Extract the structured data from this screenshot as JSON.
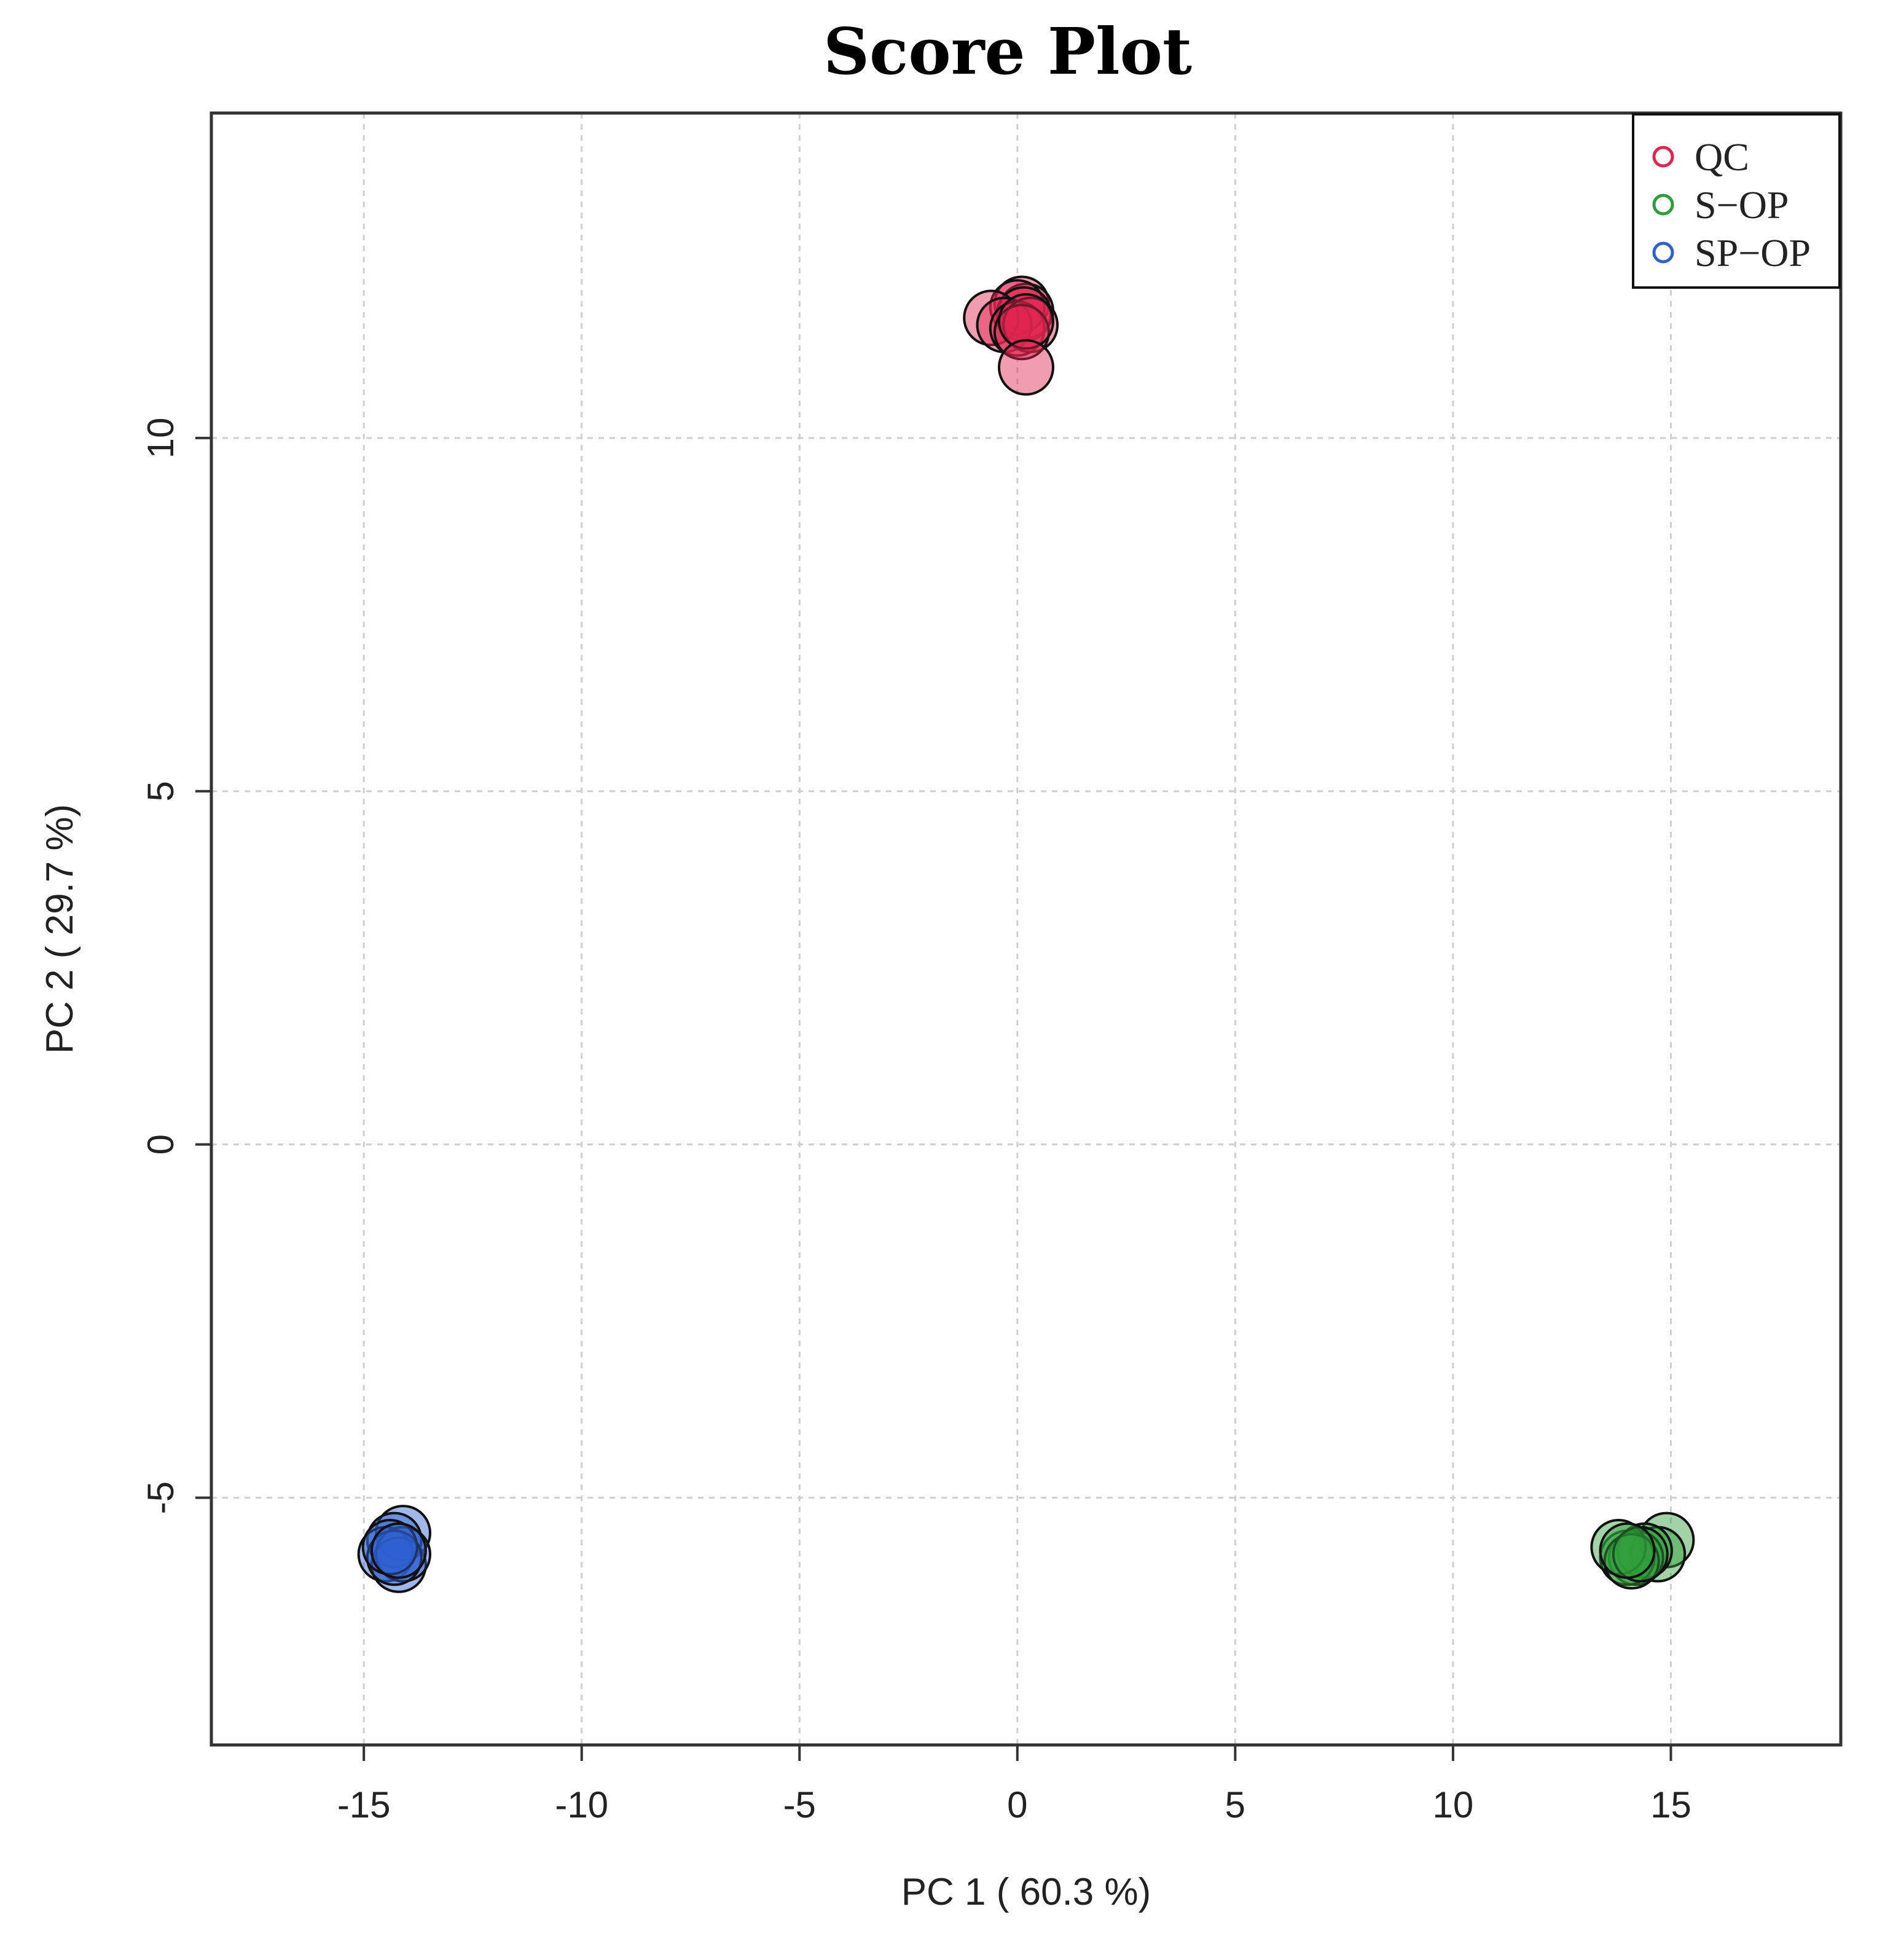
{
  "chart_data": {
    "type": "scatter",
    "title": "Score Plot",
    "xlabel": "PC 1 ( 60.3 %)",
    "ylabel": "PC 2 ( 29.7 %)",
    "xlim": [
      -18.5,
      18.9
    ],
    "ylim": [
      -8.5,
      14.6
    ],
    "xticks": [
      -15,
      -10,
      -5,
      0,
      5,
      10,
      15
    ],
    "yticks": [
      -5,
      0,
      5,
      10
    ],
    "grid": true,
    "legend_position": "top-right",
    "series": [
      {
        "name": "QC",
        "color": "#e0254f",
        "points": [
          {
            "x": 0.1,
            "y": 11.9
          },
          {
            "x": 0.2,
            "y": 11.8
          },
          {
            "x": 0.0,
            "y": 11.85
          },
          {
            "x": 0.15,
            "y": 11.75
          },
          {
            "x": -0.6,
            "y": 11.7
          },
          {
            "x": -0.3,
            "y": 11.6
          },
          {
            "x": 0.0,
            "y": 11.55
          },
          {
            "x": 0.3,
            "y": 11.6
          },
          {
            "x": 0.1,
            "y": 11.5
          },
          {
            "x": 0.2,
            "y": 11.65
          },
          {
            "x": 0.2,
            "y": 11.0
          }
        ]
      },
      {
        "name": "S−OP",
        "color": "#2e9e3a",
        "points": [
          {
            "x": 14.9,
            "y": -5.6
          },
          {
            "x": 14.7,
            "y": -5.8
          },
          {
            "x": 14.4,
            "y": -5.75
          },
          {
            "x": 14.2,
            "y": -5.85
          },
          {
            "x": 14.0,
            "y": -5.85
          },
          {
            "x": 13.8,
            "y": -5.7
          },
          {
            "x": 14.1,
            "y": -5.9
          },
          {
            "x": 14.3,
            "y": -5.8
          },
          {
            "x": 14.0,
            "y": -5.75
          }
        ]
      },
      {
        "name": "SP−OP",
        "color": "#2f5fd0",
        "points": [
          {
            "x": -14.1,
            "y": -5.5
          },
          {
            "x": -14.3,
            "y": -5.6
          },
          {
            "x": -14.5,
            "y": -5.8
          },
          {
            "x": -14.2,
            "y": -5.95
          },
          {
            "x": -14.1,
            "y": -5.8
          },
          {
            "x": -14.3,
            "y": -5.85
          },
          {
            "x": -14.4,
            "y": -5.7
          },
          {
            "x": -14.2,
            "y": -5.75
          }
        ]
      }
    ]
  }
}
